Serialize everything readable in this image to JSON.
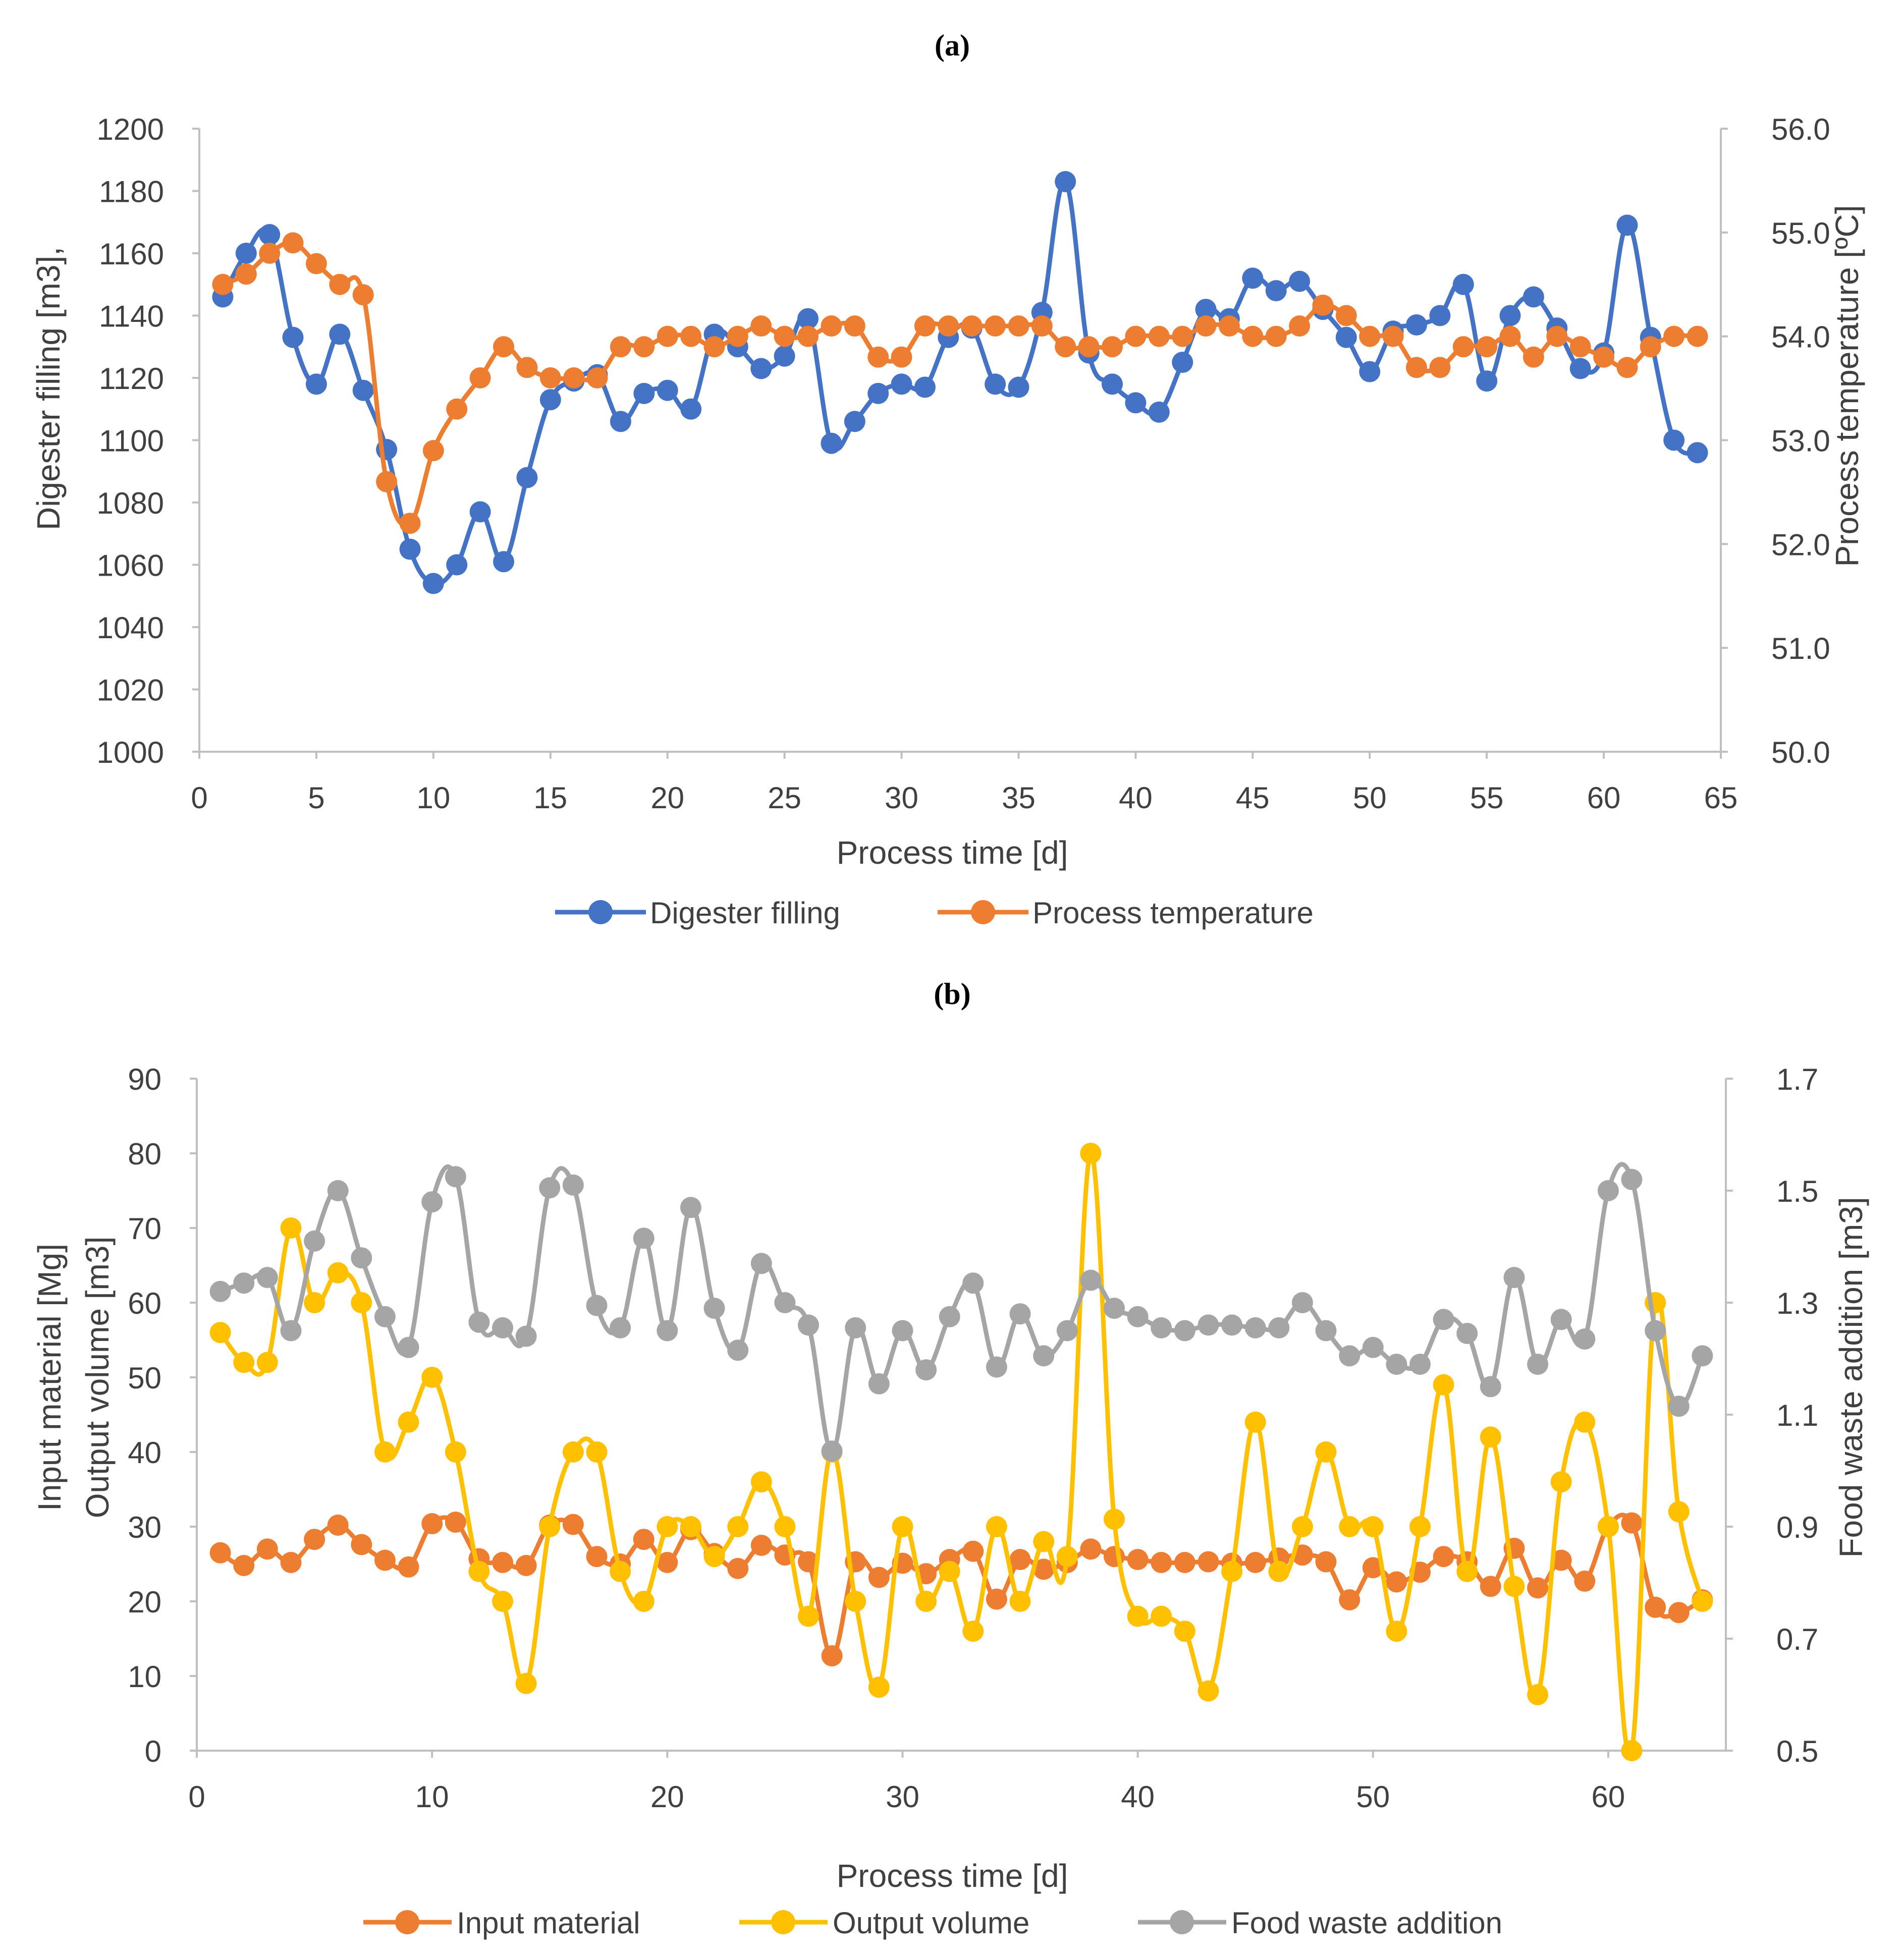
{
  "chart_data": [
    {
      "type": "line",
      "panel_label": "(a)",
      "xlabel": "Process time [d]",
      "ylabel": "Digester filling [m3],",
      "y2label": "Process temperature [ºC]",
      "xlim": [
        0,
        65
      ],
      "ylim": [
        1000,
        1200
      ],
      "y2lim": [
        50.0,
        56.0
      ],
      "xticks": [
        "0",
        "5",
        "10",
        "15",
        "20",
        "25",
        "30",
        "35",
        "40",
        "45",
        "50",
        "55",
        "60",
        "65"
      ],
      "yticks": [
        "1000",
        "1020",
        "1040",
        "1060",
        "1080",
        "1100",
        "1120",
        "1140",
        "1160",
        "1180",
        "1200"
      ],
      "y2ticks": [
        "50.0",
        "51.0",
        "52.0",
        "53.0",
        "54.0",
        "55.0",
        "56.0"
      ],
      "legend_position": "bottom",
      "series": [
        {
          "name": "Digester filling",
          "axis": "left",
          "color": "#4472C4",
          "x": [
            1,
            2,
            3,
            4,
            5,
            6,
            7,
            8,
            9,
            10,
            11,
            12,
            13,
            14,
            15,
            16,
            17,
            18,
            19,
            20,
            21,
            22,
            23,
            24,
            25,
            26,
            27,
            28,
            29,
            30,
            31,
            32,
            33,
            34,
            35,
            36,
            37,
            38,
            39,
            40,
            41,
            42,
            43,
            44,
            45,
            46,
            47,
            48,
            49,
            50,
            51,
            52,
            53,
            54,
            55,
            56,
            57,
            58,
            59,
            60,
            61,
            62,
            63,
            64
          ],
          "values": [
            1146,
            1160,
            1166,
            1133,
            1118,
            1134,
            1116,
            1097,
            1065,
            1054,
            1060,
            1077,
            1061,
            1088,
            1113,
            1119,
            1121,
            1106,
            1115,
            1116,
            1110,
            1134,
            1130,
            1123,
            1127,
            1139,
            1099,
            1106,
            1115,
            1118,
            1117,
            1133,
            1136,
            1118,
            1117,
            1141,
            1183,
            1128,
            1118,
            1112,
            1109,
            1125,
            1142,
            1139,
            1152,
            1148,
            1151,
            1142,
            1133,
            1122,
            1135,
            1137,
            1140,
            1150,
            1119,
            1140,
            1146,
            1136,
            1123,
            1128,
            1169,
            1133,
            1100,
            1096
          ]
        },
        {
          "name": "Process temperature",
          "axis": "right",
          "color": "#ED7D31",
          "x": [
            1,
            2,
            3,
            4,
            5,
            6,
            7,
            8,
            9,
            10,
            11,
            12,
            13,
            14,
            15,
            16,
            17,
            18,
            19,
            20,
            21,
            22,
            23,
            24,
            25,
            26,
            27,
            28,
            29,
            30,
            31,
            32,
            33,
            34,
            35,
            36,
            37,
            38,
            39,
            40,
            41,
            42,
            43,
            44,
            45,
            46,
            47,
            48,
            49,
            50,
            51,
            52,
            53,
            54,
            55,
            56,
            57,
            58,
            59,
            60,
            61,
            62,
            63,
            64
          ],
          "values": [
            54.5,
            54.6,
            54.8,
            54.9,
            54.7,
            54.5,
            54.4,
            52.6,
            52.2,
            52.9,
            53.3,
            53.6,
            53.9,
            53.7,
            53.6,
            53.6,
            53.6,
            53.9,
            53.9,
            54.0,
            54.0,
            53.9,
            54.0,
            54.1,
            54.0,
            54.0,
            54.1,
            54.1,
            53.8,
            53.8,
            54.1,
            54.1,
            54.1,
            54.1,
            54.1,
            54.1,
            53.9,
            53.9,
            53.9,
            54.0,
            54.0,
            54.0,
            54.1,
            54.1,
            54.0,
            54.0,
            54.1,
            54.3,
            54.2,
            54.0,
            54.0,
            53.7,
            53.7,
            53.9,
            53.9,
            54.0,
            53.8,
            54.0,
            53.9,
            53.8,
            53.7,
            53.9,
            54.0,
            54.0
          ]
        }
      ]
    },
    {
      "type": "line",
      "panel_label": "(b)",
      "xlabel": "Process time [d]",
      "ylabel_lines": [
        "Input material [Mg]",
        "Output volume [m3]"
      ],
      "y2label": "Food waste addition [m3]",
      "xlim": [
        0,
        65
      ],
      "ylim": [
        0,
        90
      ],
      "y2lim": [
        0.5,
        1.7
      ],
      "xticks": [
        "0",
        "10",
        "20",
        "30",
        "40",
        "50",
        "60"
      ],
      "xtick_values": [
        0,
        10,
        20,
        30,
        40,
        50,
        60
      ],
      "yticks": [
        "0",
        "10",
        "20",
        "30",
        "40",
        "50",
        "60",
        "70",
        "80",
        "90"
      ],
      "y2ticks": [
        "0.5",
        "0.7",
        "0.9",
        "1.1",
        "1.3",
        "1.5",
        "1.7"
      ],
      "legend_position": "bottom",
      "series": [
        {
          "name": "Input material",
          "axis": "left",
          "color": "#ED7D31",
          "x": [
            1,
            2,
            3,
            4,
            5,
            6,
            7,
            8,
            9,
            10,
            11,
            12,
            13,
            14,
            15,
            16,
            17,
            18,
            19,
            20,
            21,
            22,
            23,
            24,
            25,
            26,
            27,
            28,
            29,
            30,
            31,
            32,
            33,
            34,
            35,
            36,
            37,
            38,
            39,
            40,
            41,
            42,
            43,
            44,
            45,
            46,
            47,
            48,
            49,
            50,
            51,
            52,
            53,
            54,
            55,
            56,
            57,
            58,
            59,
            60,
            61,
            62,
            63,
            64
          ],
          "values": [
            26.5,
            24.8,
            27.0,
            25.2,
            28.3,
            30.2,
            27.6,
            25.5,
            24.6,
            30.4,
            30.6,
            25.7,
            25.2,
            24.8,
            30.2,
            30.3,
            26.0,
            25.0,
            28.3,
            25.2,
            29.6,
            26.4,
            24.4,
            27.5,
            26.2,
            25.3,
            12.7,
            25.3,
            23.2,
            25.1,
            23.7,
            25.6,
            26.7,
            20.3,
            25.6,
            24.3,
            25.2,
            27.0,
            26.0,
            25.6,
            25.2,
            25.2,
            25.3,
            25.1,
            25.2,
            25.8,
            26.2,
            25.3,
            20.2,
            24.5,
            22.6,
            23.9,
            26.0,
            25.3,
            22.0,
            27.1,
            21.8,
            25.5,
            22.7,
            30.0,
            30.5,
            19.2,
            18.5,
            20.2
          ]
        },
        {
          "name": "Output volume",
          "axis": "left",
          "color": "#FFC000",
          "x": [
            1,
            2,
            3,
            4,
            5,
            6,
            7,
            8,
            9,
            10,
            11,
            12,
            13,
            14,
            15,
            16,
            17,
            18,
            19,
            20,
            21,
            22,
            23,
            24,
            25,
            26,
            27,
            28,
            29,
            30,
            31,
            32,
            33,
            34,
            35,
            36,
            37,
            38,
            39,
            40,
            41,
            42,
            43,
            44,
            45,
            46,
            47,
            48,
            49,
            50,
            51,
            52,
            53,
            54,
            55,
            56,
            57,
            58,
            59,
            60,
            61,
            62,
            63,
            64
          ],
          "values": [
            56,
            52,
            52,
            70,
            60,
            64,
            60,
            40,
            44,
            50,
            40,
            24,
            20,
            9,
            30,
            40,
            40,
            24,
            20,
            30,
            30,
            26,
            30,
            36,
            30,
            18,
            40,
            20,
            8.5,
            30,
            20,
            24,
            16,
            30,
            20,
            28,
            26,
            80,
            31,
            18,
            18,
            16,
            8,
            24,
            44,
            24,
            30,
            40,
            30,
            30,
            16,
            30,
            49,
            24,
            42,
            22,
            7.5,
            36,
            44,
            30,
            0,
            60,
            32,
            20
          ]
        },
        {
          "name": "Food waste addition",
          "axis": "right",
          "color": "#A5A5A5",
          "x": [
            1,
            2,
            3,
            4,
            5,
            6,
            7,
            8,
            9,
            10,
            11,
            12,
            13,
            14,
            15,
            16,
            17,
            18,
            19,
            20,
            21,
            22,
            23,
            24,
            25,
            26,
            27,
            28,
            29,
            30,
            31,
            32,
            33,
            34,
            35,
            36,
            37,
            38,
            39,
            40,
            41,
            42,
            43,
            44,
            45,
            46,
            47,
            48,
            49,
            50,
            51,
            52,
            53,
            54,
            55,
            56,
            57,
            58,
            59,
            60,
            61,
            62,
            63,
            64
          ],
          "values": [
            1.32,
            1.335,
            1.345,
            1.25,
            1.41,
            1.5,
            1.38,
            1.275,
            1.22,
            1.48,
            1.525,
            1.265,
            1.255,
            1.24,
            1.505,
            1.51,
            1.295,
            1.255,
            1.415,
            1.25,
            1.47,
            1.29,
            1.215,
            1.37,
            1.3,
            1.26,
            1.035,
            1.255,
            1.155,
            1.25,
            1.18,
            1.275,
            1.335,
            1.185,
            1.28,
            1.205,
            1.25,
            1.34,
            1.29,
            1.275,
            1.255,
            1.25,
            1.26,
            1.26,
            1.255,
            1.255,
            1.3,
            1.25,
            1.205,
            1.22,
            1.19,
            1.19,
            1.27,
            1.245,
            1.15,
            1.345,
            1.19,
            1.27,
            1.235,
            1.5,
            1.52,
            1.25,
            1.115,
            1.205
          ]
        }
      ]
    }
  ]
}
